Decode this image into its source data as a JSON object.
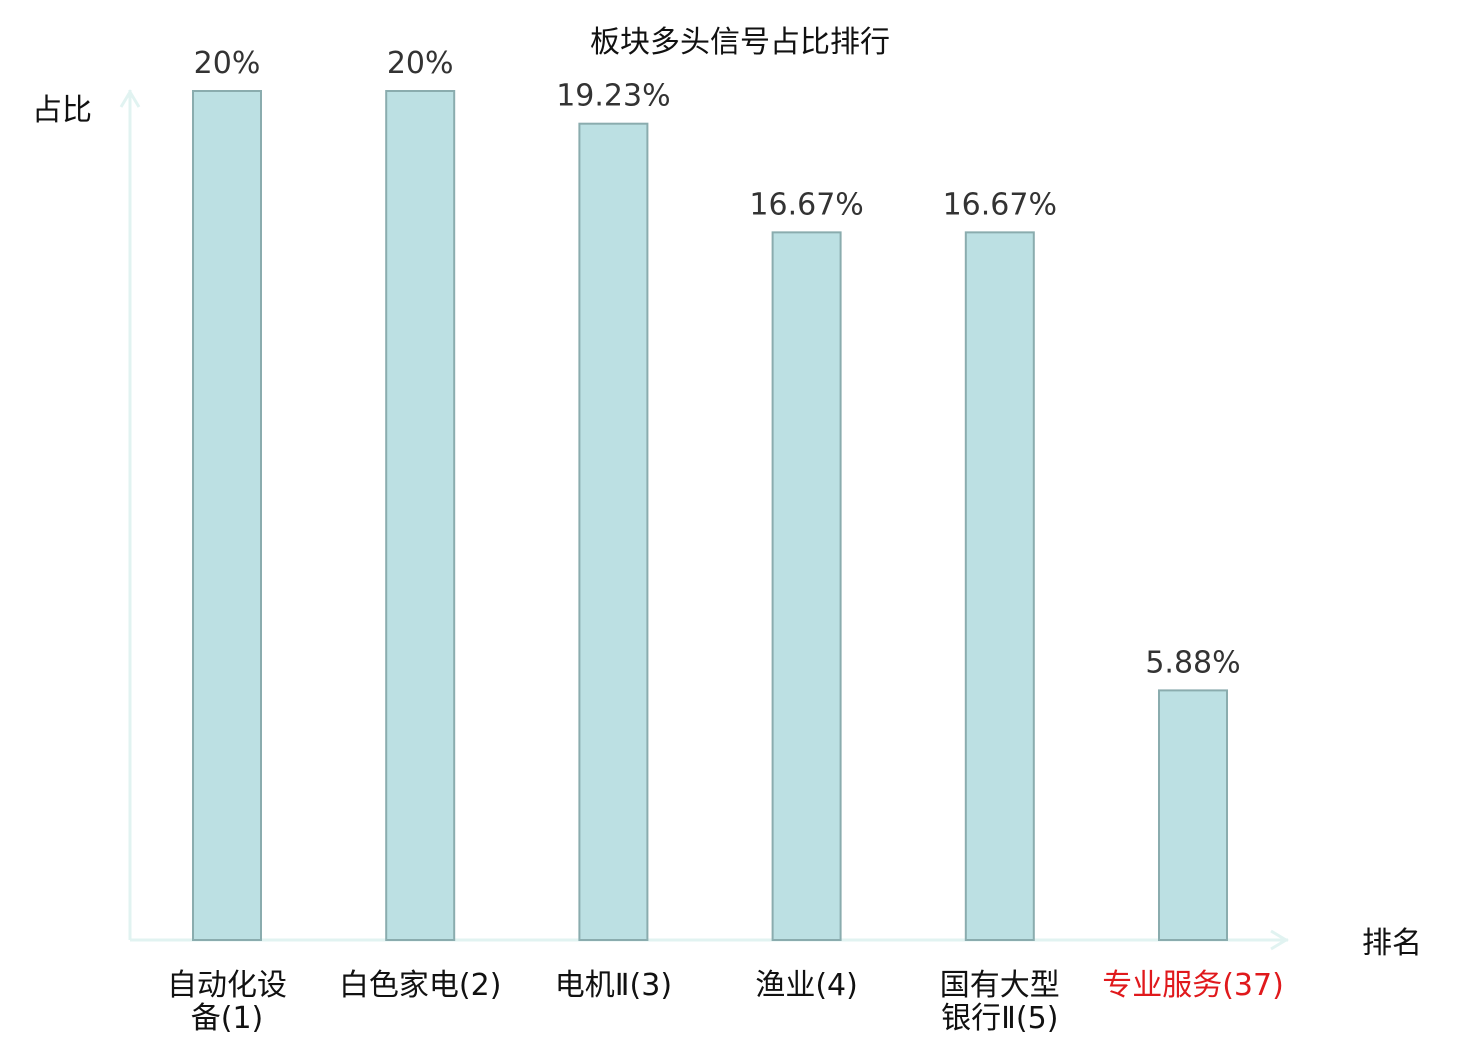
{
  "chart_data": {
    "type": "bar",
    "title": "板块多头信号占比排行",
    "ylabel": "占比",
    "xlabel": "排名",
    "categories": [
      {
        "lines": [
          "自动化设",
          "备(1)"
        ],
        "highlight": false
      },
      {
        "lines": [
          "白色家电(2)"
        ],
        "highlight": false
      },
      {
        "lines": [
          "电机Ⅱ(3)"
        ],
        "highlight": false
      },
      {
        "lines": [
          "渔业(4)"
        ],
        "highlight": false
      },
      {
        "lines": [
          "国有大型",
          "银行Ⅱ(5)"
        ],
        "highlight": false
      },
      {
        "lines": [
          "专业服务(37)"
        ],
        "highlight": true
      }
    ],
    "values": [
      20,
      20,
      19.23,
      16.67,
      16.67,
      5.88
    ],
    "value_labels": [
      "20%",
      "20%",
      "19.23%",
      "16.67%",
      "16.67%",
      "5.88%"
    ],
    "ylim": [
      0,
      20
    ],
    "grid": false,
    "colors": {
      "bar_fill": "#bce0e3",
      "bar_stroke": "#8aacae",
      "axis": "#e1f3f1",
      "highlight_text": "#e0191c",
      "text": "#111111",
      "value_text": "#333333"
    }
  }
}
